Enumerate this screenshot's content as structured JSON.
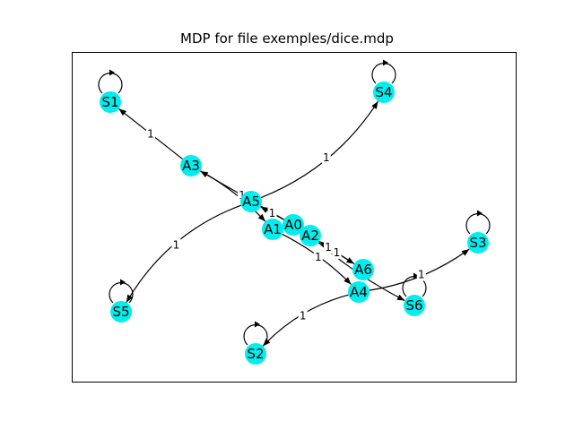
{
  "title": "MDP for file exemples/dice.mdp",
  "style": {
    "node_color": "#00eeee",
    "edge_color": "#000000",
    "frame_color": "#000000"
  },
  "nodes": [
    {
      "id": "S1",
      "label": "S1"
    },
    {
      "id": "S4",
      "label": "S4"
    },
    {
      "id": "A3",
      "label": "A3"
    },
    {
      "id": "A5",
      "label": "A5"
    },
    {
      "id": "A0",
      "label": "A0"
    },
    {
      "id": "A1",
      "label": "A1"
    },
    {
      "id": "A2",
      "label": "A2"
    },
    {
      "id": "S3",
      "label": "S3"
    },
    {
      "id": "A6",
      "label": "A6"
    },
    {
      "id": "A4",
      "label": "A4"
    },
    {
      "id": "S6",
      "label": "S6"
    },
    {
      "id": "S5",
      "label": "S5"
    },
    {
      "id": "S2",
      "label": "S2"
    }
  ],
  "edges": [
    {
      "from": "A3",
      "to": "S1",
      "label": "1"
    },
    {
      "from": "A5",
      "to": "S4",
      "label": "1"
    },
    {
      "from": "A5",
      "to": "S5",
      "label": "1"
    },
    {
      "from": "A0",
      "to": "A3",
      "label": "1"
    },
    {
      "from": "A3",
      "to": "A1",
      "label": ""
    },
    {
      "from": "A0",
      "to": "A5",
      "label": "1"
    },
    {
      "from": "A0",
      "to": "A2",
      "label": "1"
    },
    {
      "from": "A1",
      "to": "A4",
      "label": "1"
    },
    {
      "from": "A0",
      "to": "A6",
      "label": "1"
    },
    {
      "from": "A6",
      "to": "A2",
      "label": "1"
    },
    {
      "from": "A2",
      "to": "S6",
      "label": "1"
    },
    {
      "from": "A4",
      "to": "S3",
      "label": "1"
    },
    {
      "from": "A4",
      "to": "S2",
      "label": "1"
    }
  ],
  "self_loops": [
    "S1",
    "S4",
    "S3",
    "S6",
    "S5",
    "S2"
  ]
}
